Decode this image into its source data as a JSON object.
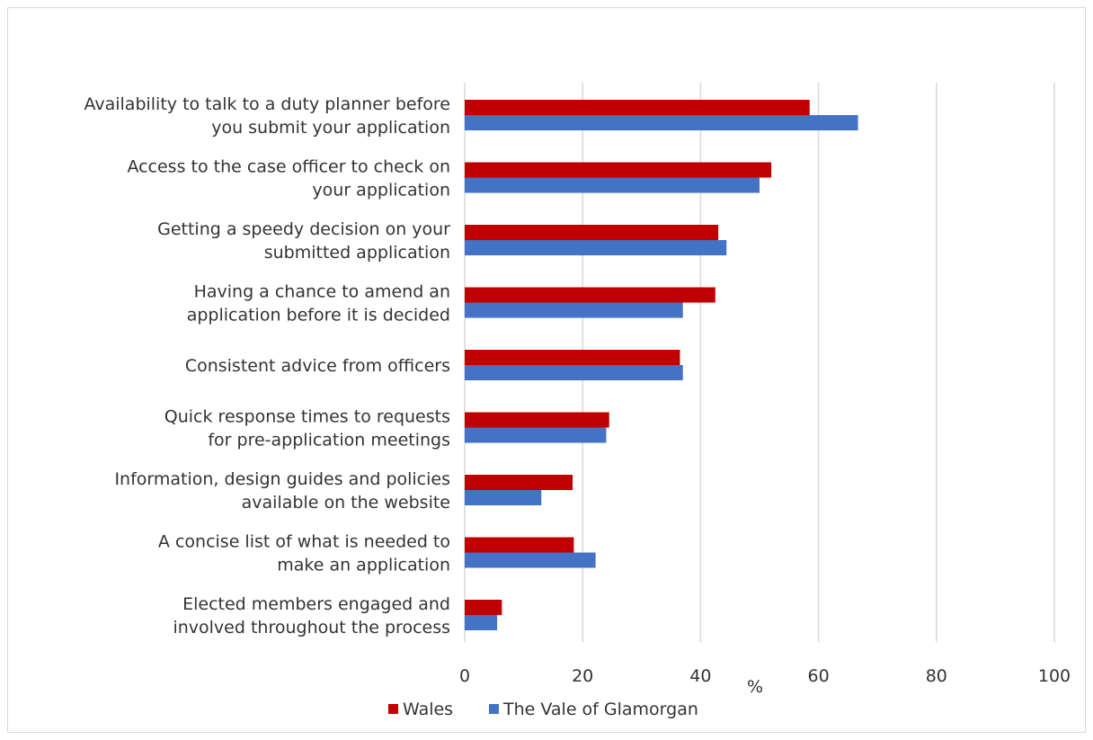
{
  "chart_data": {
    "type": "bar",
    "orientation": "horizontal",
    "title": "",
    "xlabel": "%",
    "ylabel": "",
    "xlim": [
      0,
      100
    ],
    "xticks": [
      "0",
      "20",
      "40",
      "60",
      "80",
      "100"
    ],
    "grid": true,
    "legend_position": "bottom",
    "categories": [
      [
        "Availability to talk to a duty planner before",
        "you submit your application"
      ],
      [
        "Access to the case officer to check on",
        "your application"
      ],
      [
        "Getting a speedy decision on your",
        "submitted application"
      ],
      [
        "Having a chance to amend an",
        "application before it is decided"
      ],
      [
        "Consistent advice from officers"
      ],
      [
        "Quick response times to requests",
        "for pre-application meetings"
      ],
      [
        "Information, design guides and policies",
        "available on the website"
      ],
      [
        "A concise list of what is needed to",
        "make an application"
      ],
      [
        "Elected members engaged and",
        "involved throughout the process"
      ]
    ],
    "series": [
      {
        "name": "Wales",
        "color": "#c00000",
        "values": [
          58.5,
          52,
          43,
          42.5,
          36.5,
          24.5,
          18.3,
          18.5,
          6.3
        ]
      },
      {
        "name": "The Vale of Glamorgan",
        "color": "#4472c4",
        "values": [
          66.7,
          50,
          44.4,
          37,
          37,
          24,
          13,
          22.2,
          5.5
        ]
      }
    ]
  }
}
